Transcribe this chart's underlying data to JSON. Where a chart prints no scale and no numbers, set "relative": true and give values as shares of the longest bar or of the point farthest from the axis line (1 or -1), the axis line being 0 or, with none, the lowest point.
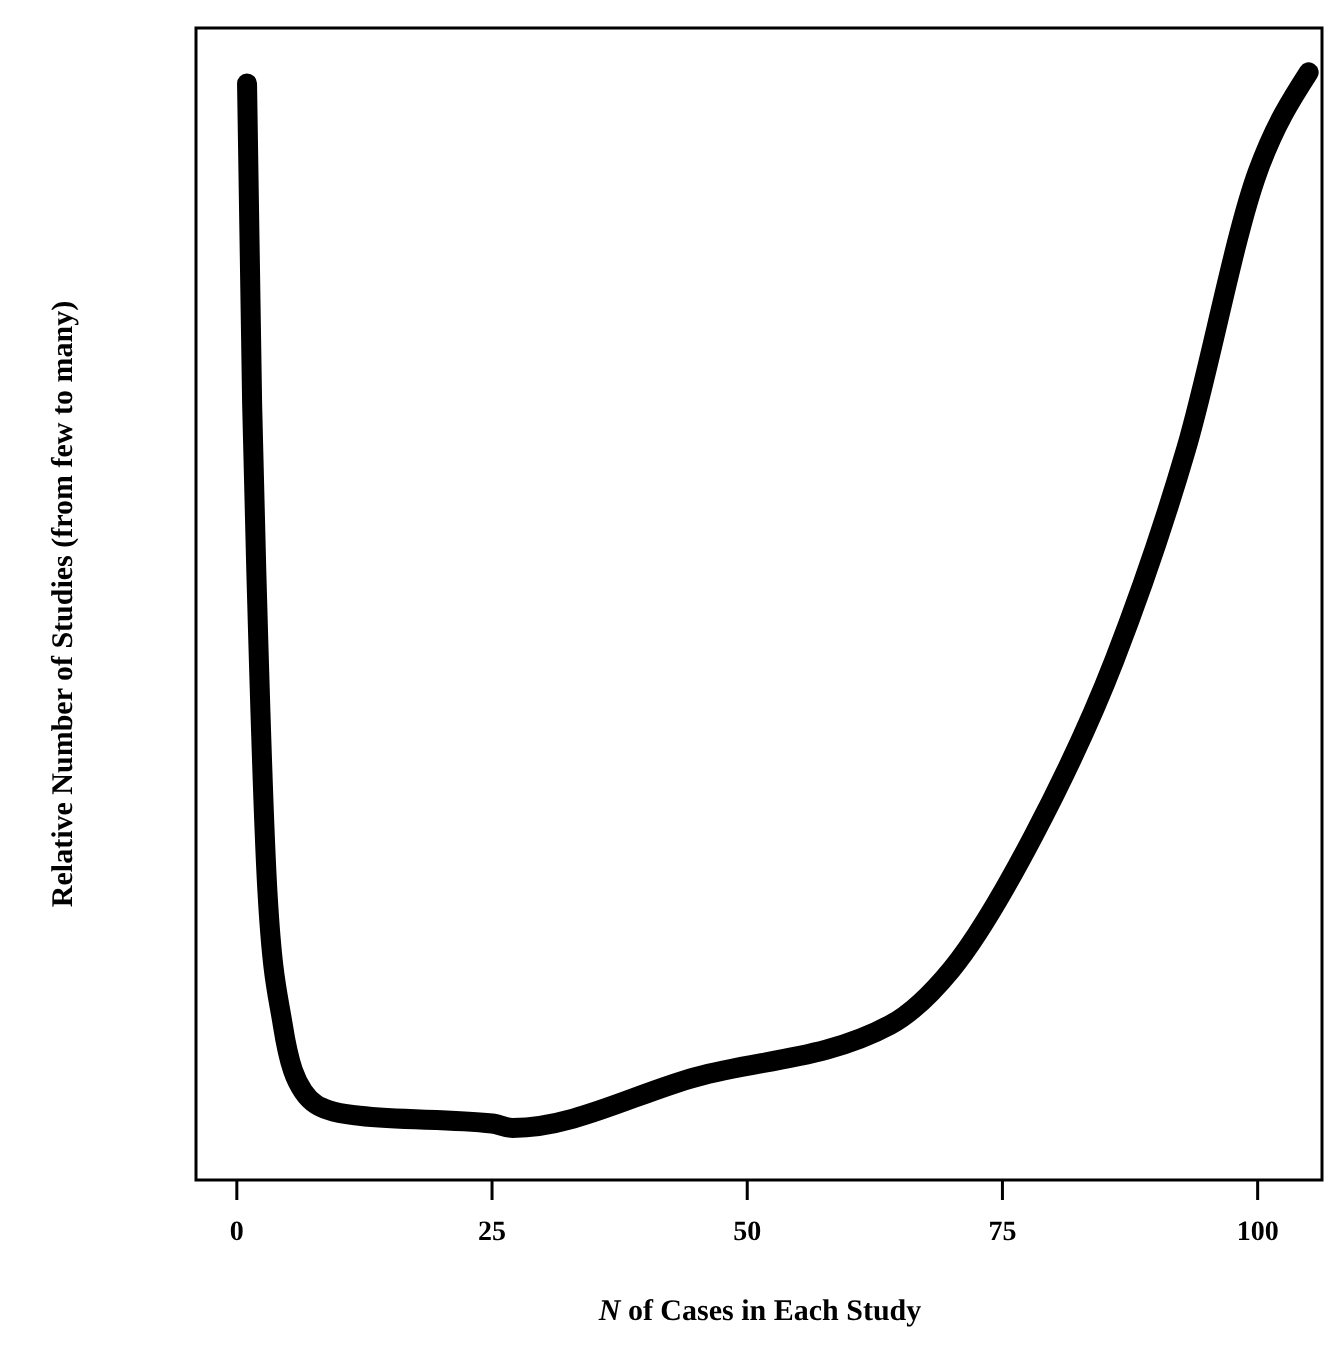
{
  "chart_data": {
    "type": "line",
    "xlabel": "N of Cases in Each Study",
    "ylabel": "Relative Number of Studies (from few to many)",
    "relative": true,
    "xlim": [
      -4,
      106.5
    ],
    "xticks": [
      0,
      25,
      50,
      75,
      100
    ],
    "line_style": "solid",
    "series": [
      {
        "color": "#000000",
        "x": [
          1,
          1.5,
          2,
          3,
          4.5,
          6.5,
          9,
          12,
          25,
          27,
          45,
          64,
          70,
          78,
          86,
          93,
          100,
          105
        ],
        "values": [
          0.99,
          0.7,
          0.52,
          0.26,
          0.14,
          0.08,
          0.063,
          0.058,
          0.051,
          0.047,
          0.093,
          0.14,
          0.19,
          0.31,
          0.47,
          0.66,
          0.91,
          1
        ]
      }
    ]
  }
}
